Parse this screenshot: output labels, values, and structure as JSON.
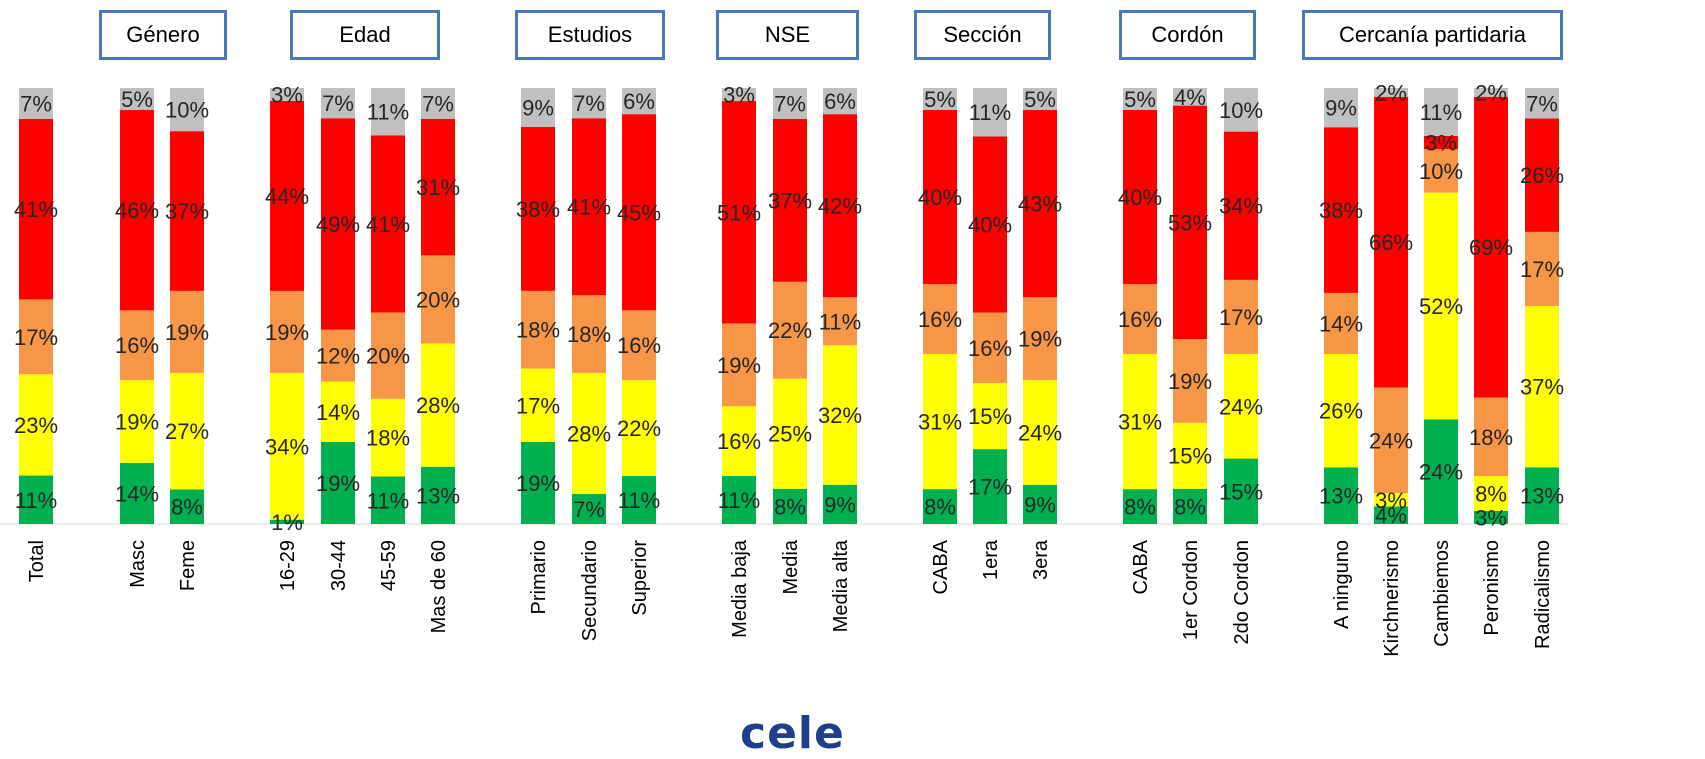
{
  "groups": [
    {
      "label": "Género"
    },
    {
      "label": "Edad"
    },
    {
      "label": "Estudios"
    },
    {
      "label": "NSE"
    },
    {
      "label": "Sección"
    },
    {
      "label": "Cordón"
    },
    {
      "label": "Cercanía partidaria"
    }
  ],
  "logo_text": "cele",
  "colors": {
    "green": "#00b050",
    "yellow": "#ffff00",
    "orange": "#f79646",
    "red": "#ff0000",
    "gray": "#c0c0c0"
  },
  "chart_data": {
    "type": "bar",
    "stacked": true,
    "normalized_percent": true,
    "categories": [
      "Total",
      "Masc",
      "Feme",
      "16-29",
      "30-44",
      "45-59",
      "Mas de 60",
      "Primario",
      "Secundario",
      "Superior",
      "Media baja",
      "Media",
      "Media alta",
      "CABA",
      "1era",
      "3era",
      "CABA",
      "1er Cordon",
      "2do Cordon",
      "A ninguno",
      "Kirchnerismo",
      "Cambiemos",
      "Peronismo",
      "Radicalismo"
    ],
    "category_groups": [
      {
        "group": null,
        "categories": [
          "Total"
        ]
      },
      {
        "group": "Género",
        "categories": [
          "Masc",
          "Feme"
        ]
      },
      {
        "group": "Edad",
        "categories": [
          "16-29",
          "30-44",
          "45-59",
          "Mas de 60"
        ]
      },
      {
        "group": "Estudios",
        "categories": [
          "Primario",
          "Secundario",
          "Superior"
        ]
      },
      {
        "group": "NSE",
        "categories": [
          "Media baja",
          "Media",
          "Media alta"
        ]
      },
      {
        "group": "Sección",
        "categories": [
          "CABA",
          "1era",
          "3era"
        ]
      },
      {
        "group": "Cordón",
        "categories": [
          "CABA",
          "1er Cordon",
          "2do Cordon"
        ]
      },
      {
        "group": "Cercanía partidaria",
        "categories": [
          "A ninguno",
          "Kirchnerismo",
          "Cambiemos",
          "Peronismo",
          "Radicalismo"
        ]
      }
    ],
    "series": [
      {
        "color": "#00b050",
        "values": [
          11,
          14,
          8,
          1,
          19,
          11,
          13,
          19,
          7,
          11,
          11,
          8,
          9,
          8,
          17,
          9,
          8,
          8,
          15,
          13,
          4,
          24,
          3,
          13
        ]
      },
      {
        "color": "#ffff00",
        "values": [
          23,
          19,
          27,
          34,
          14,
          18,
          28,
          17,
          28,
          22,
          16,
          25,
          32,
          31,
          15,
          24,
          31,
          15,
          24,
          26,
          3,
          52,
          8,
          37
        ]
      },
      {
        "color": "#f79646",
        "values": [
          17,
          16,
          19,
          19,
          12,
          20,
          20,
          18,
          18,
          16,
          19,
          22,
          11,
          16,
          16,
          19,
          16,
          19,
          17,
          14,
          24,
          10,
          18,
          17
        ]
      },
      {
        "color": "#ff0000",
        "values": [
          41,
          46,
          37,
          44,
          49,
          41,
          31,
          38,
          41,
          45,
          51,
          37,
          42,
          40,
          40,
          43,
          40,
          53,
          34,
          38,
          66,
          3,
          69,
          26
        ]
      },
      {
        "color": "#c0c0c0",
        "values": [
          7,
          5,
          10,
          3,
          7,
          11,
          7,
          9,
          7,
          6,
          3,
          7,
          6,
          5,
          11,
          5,
          5,
          4,
          10,
          9,
          2,
          11,
          2,
          7
        ]
      }
    ],
    "data_label_format": "{v}%",
    "legend": "none",
    "grid": false
  }
}
